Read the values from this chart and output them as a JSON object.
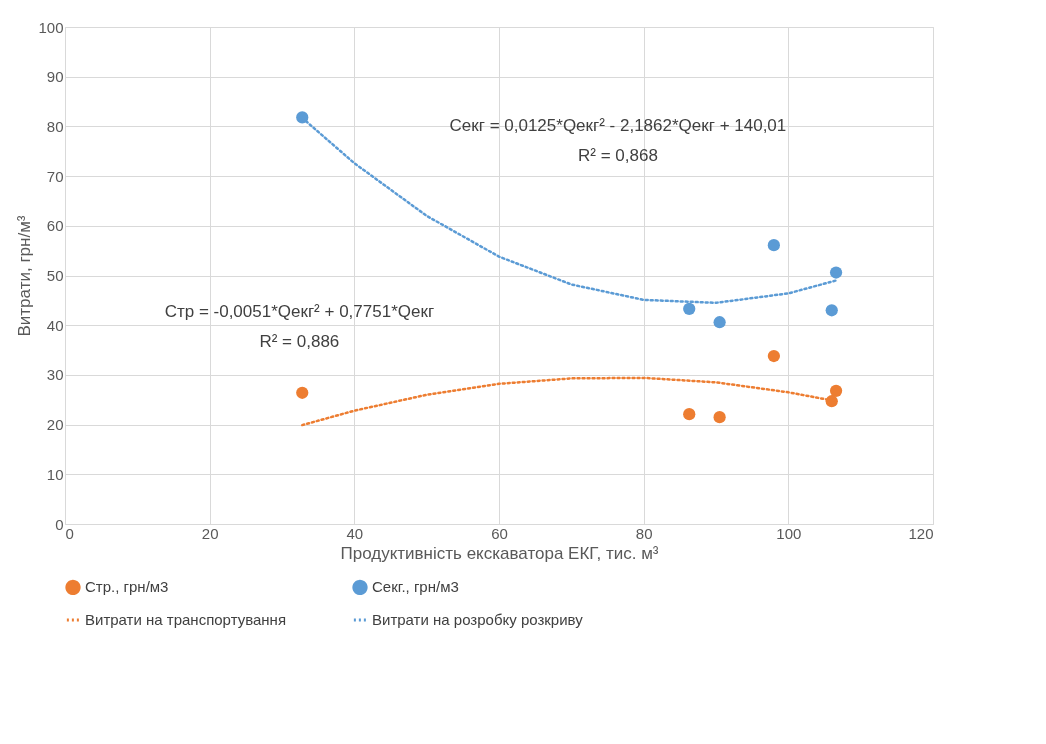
{
  "chart_data": {
    "type": "scatter",
    "xlabel": "Продуктивність екскаватора ЕКГ, тис. м³",
    "ylabel": "Витрати, грн/м³",
    "xlim": [
      0,
      120
    ],
    "xticks": [
      0,
      20,
      40,
      60,
      80,
      100,
      120
    ],
    "ylim": [
      0,
      100
    ],
    "yticks": [
      0,
      10,
      20,
      30,
      40,
      50,
      60,
      70,
      80,
      90,
      100
    ],
    "grid": true,
    "legend": "bottom",
    "series": [
      {
        "name": "Стр., грн/м3",
        "marker": "circle",
        "color": "#ed7d31",
        "x": [
          32.8,
          86.3,
          90.5,
          98,
          106,
          106.6
        ],
        "values": [
          26.4,
          22.1,
          21.5,
          33.8,
          24.7,
          26.8
        ]
      },
      {
        "name": "Секг., грн/м3",
        "marker": "circle",
        "color": "#5b9bd5",
        "x": [
          32.8,
          86.3,
          90.5,
          98,
          106,
          106.6
        ],
        "values": [
          81.8,
          43.3,
          40.6,
          56.1,
          43,
          50.6
        ]
      },
      {
        "name": "Витрати на транспортування",
        "type": "line",
        "marker": "none",
        "line_style": "dotted",
        "color": "#ed7d31",
        "x": [
          32.8,
          40,
          50,
          60,
          70,
          80,
          90,
          100,
          106.6
        ],
        "values": [
          19.9,
          22.8,
          26.0,
          28.2,
          29.3,
          29.4,
          28.5,
          26.5,
          24.7
        ]
      },
      {
        "name": "Витрати на розробку розкриву",
        "type": "line",
        "marker": "none",
        "line_style": "dotted",
        "color": "#5b9bd5",
        "x": [
          32.8,
          40,
          50,
          60,
          70,
          80,
          90,
          100,
          106.6
        ],
        "values": [
          81.7,
          72.6,
          62.0,
          53.8,
          48.2,
          45.1,
          44.5,
          46.4,
          49.0
        ]
      }
    ],
    "annotations": [
      "Секг = 0,0125*Qекг² - 2,1862*Qекг + 140,01",
      "R² = 0,868",
      "Стр = -0,0051*Qекг² + 0,7751*Qекг",
      "R² = 0,886"
    ]
  }
}
